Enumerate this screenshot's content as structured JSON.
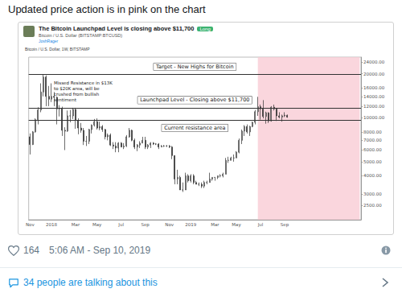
{
  "tweet": {
    "text": "Updated price action is in pink on the chart",
    "likes": 164,
    "timestamp": "5:06 AM - Sep 10, 2019",
    "conversation": "34 people are talking about this"
  },
  "idea": {
    "title": "The Bitcoin Launchpad Level is closing above $11,700",
    "badge": "Long",
    "symbol": "Bitcoin / U.S. Dollar (BITSTAMP:BTCUSD)",
    "author": "JoshRager"
  },
  "chart_data": {
    "type": "candlestick",
    "title": "Bitcoin / U.S. Dollar, 1W, BITSTAMP",
    "categories": [
      "Nov",
      null,
      null,
      null,
      null,
      null,
      null,
      null,
      "2018",
      null,
      null,
      null,
      null,
      null,
      null,
      null,
      null,
      "Mar",
      null,
      null,
      null,
      null,
      null,
      null,
      null,
      "May",
      null,
      null,
      null,
      null,
      null,
      null,
      null,
      null,
      "Jul",
      null,
      null,
      null,
      null,
      null,
      null,
      null,
      null,
      "Sep",
      null,
      null,
      null,
      null,
      null,
      null,
      null,
      null,
      "Nov",
      null,
      null,
      null,
      null,
      null,
      null,
      null,
      "2019",
      null,
      null,
      null,
      null,
      null,
      null,
      null,
      null,
      "Mar",
      null,
      null,
      null,
      null,
      null,
      null,
      null,
      "May",
      null,
      null,
      null,
      null,
      null,
      null,
      null,
      null,
      "Jul",
      null,
      null,
      null,
      null,
      null,
      null,
      null,
      null,
      "Sep",
      null,
      null,
      null,
      null,
      null,
      null,
      null,
      null,
      null,
      null,
      null,
      null,
      null,
      null,
      null,
      null,
      null,
      null,
      null,
      null,
      null,
      null,
      null,
      null,
      null,
      null,
      null,
      null
    ],
    "open_close_low_high": [
      [
        7400,
        6550,
        5600,
        7800
      ],
      [
        6550,
        8000,
        6500,
        8100
      ],
      [
        8000,
        9700,
        7900,
        9900
      ],
      [
        9700,
        11300,
        9000,
        11800
      ],
      [
        11300,
        15000,
        10900,
        17200
      ],
      [
        15000,
        19000,
        14000,
        19700
      ],
      [
        19000,
        14000,
        12000,
        19500
      ],
      [
        14000,
        13400,
        12000,
        16500
      ],
      [
        13400,
        14000,
        12800,
        17200
      ],
      [
        14000,
        13800,
        12000,
        15000
      ],
      [
        13800,
        11500,
        9000,
        14000
      ],
      [
        11500,
        11600,
        10200,
        12200
      ],
      [
        11600,
        8200,
        7500,
        11900
      ],
      [
        8200,
        8100,
        6000,
        8600
      ],
      [
        8100,
        10300,
        8000,
        11200
      ],
      [
        10300,
        10300,
        9300,
        11300
      ],
      [
        10300,
        11400,
        9800,
        11700
      ],
      [
        11400,
        9600,
        8400,
        11700
      ],
      [
        9600,
        8500,
        7700,
        9900
      ],
      [
        8500,
        8200,
        7900,
        9200
      ],
      [
        8200,
        6900,
        6500,
        8500
      ],
      [
        6900,
        6900,
        6400,
        7500
      ],
      [
        6900,
        8300,
        6600,
        8400
      ],
      [
        8300,
        8900,
        7800,
        9000
      ],
      [
        8900,
        9400,
        8700,
        9800
      ],
      [
        9400,
        8500,
        8300,
        9900
      ],
      [
        8500,
        8700,
        8200,
        9400
      ],
      [
        8700,
        8300,
        8000,
        8900
      ],
      [
        8300,
        7400,
        7100,
        8400
      ],
      [
        7400,
        7600,
        7000,
        7800
      ],
      [
        7600,
        6500,
        6400,
        7800
      ],
      [
        6500,
        6400,
        6100,
        6800
      ],
      [
        6400,
        6200,
        5800,
        6800
      ],
      [
        6200,
        6700,
        5800,
        6800
      ],
      [
        6700,
        6300,
        6300,
        6800
      ],
      [
        6300,
        6400,
        6100,
        6700
      ],
      [
        6400,
        7400,
        6300,
        7600
      ],
      [
        7400,
        8200,
        7300,
        8500
      ],
      [
        8200,
        7000,
        6900,
        8300
      ],
      [
        7000,
        6300,
        6100,
        7200
      ],
      [
        6300,
        6500,
        5900,
        6600
      ],
      [
        6500,
        6700,
        6200,
        6900
      ],
      [
        6700,
        7000,
        6700,
        7400
      ],
      [
        7000,
        6300,
        6100,
        7400
      ],
      [
        6300,
        6500,
        6100,
        6600
      ],
      [
        6500,
        6700,
        6200,
        6800
      ],
      [
        6700,
        6600,
        6500,
        6800
      ],
      [
        6600,
        6600,
        6500,
        6700
      ],
      [
        6600,
        6300,
        6100,
        6700
      ],
      [
        6300,
        6400,
        6300,
        6500
      ],
      [
        6400,
        6400,
        6300,
        6500
      ],
      [
        6400,
        6400,
        6300,
        6500
      ],
      [
        6400,
        6300,
        6200,
        6500
      ],
      [
        6300,
        5500,
        5200,
        6400
      ],
      [
        5500,
        3800,
        3500,
        5500
      ],
      [
        3800,
        3900,
        3500,
        4400
      ],
      [
        3900,
        3200,
        3200,
        4000
      ],
      [
        3200,
        3200,
        3100,
        3600
      ],
      [
        3200,
        4000,
        3200,
        4200
      ],
      [
        4000,
        3700,
        3600,
        4100
      ],
      [
        3700,
        4000,
        3600,
        4100
      ],
      [
        4000,
        3600,
        3500,
        4100
      ],
      [
        3600,
        3500,
        3500,
        3700
      ],
      [
        3500,
        3500,
        3400,
        3600
      ],
      [
        3500,
        3400,
        3300,
        3600
      ],
      [
        3400,
        3600,
        3300,
        3700
      ],
      [
        3600,
        3600,
        3500,
        3700
      ],
      [
        3600,
        3800,
        3600,
        4200
      ],
      [
        3800,
        3900,
        3700,
        3900
      ],
      [
        3900,
        3900,
        3700,
        3900
      ],
      [
        3900,
        4000,
        3800,
        4000
      ],
      [
        4000,
        4000,
        3900,
        4100
      ],
      [
        4000,
        4100,
        3900,
        4200
      ],
      [
        4100,
        5100,
        4100,
        5300
      ],
      [
        5100,
        5100,
        4900,
        5400
      ],
      [
        5100,
        5300,
        5100,
        5400
      ],
      [
        5300,
        5300,
        5000,
        5600
      ],
      [
        5300,
        5800,
        5300,
        5900
      ],
      [
        5800,
        7000,
        5700,
        7200
      ],
      [
        7000,
        8100,
        6600,
        8300
      ],
      [
        8100,
        8700,
        7500,
        8900
      ],
      [
        8700,
        8000,
        7800,
        9000
      ],
      [
        8000,
        8700,
        7500,
        8800
      ],
      [
        8700,
        9300,
        8600,
        9400
      ],
      [
        9300,
        11000,
        9000,
        11300
      ],
      [
        11000,
        11900,
        10300,
        13900
      ],
      [
        11900,
        11500,
        9700,
        12300
      ],
      [
        11500,
        10200,
        9900,
        13200
      ],
      [
        10200,
        10800,
        9100,
        11000
      ],
      [
        10800,
        9500,
        9200,
        10900
      ],
      [
        9500,
        11800,
        9400,
        12000
      ],
      [
        11800,
        11500,
        11200,
        12300
      ],
      [
        11500,
        10300,
        9500,
        11500
      ],
      [
        10300,
        10100,
        9900,
        10900
      ],
      [
        10100,
        10300,
        9400,
        10500
      ],
      [
        10300,
        10400,
        10100,
        10900
      ],
      [
        10400,
        10100,
        10000,
        10500
      ],
      null,
      null,
      null,
      null,
      null,
      null,
      null,
      null,
      null,
      null,
      null,
      null,
      null,
      null,
      null,
      null,
      null,
      null,
      null,
      null,
      null,
      null,
      null,
      null,
      null,
      null,
      null
    ],
    "color": "#2e2e2e",
    "log": "y",
    "ylim": [
      2000,
      26000
    ],
    "yticks": [
      {
        "value": 2500,
        "label": "2500.00"
      },
      {
        "value": 3000,
        "label": "3000.00"
      },
      {
        "value": 4000,
        "label": "4000.00"
      },
      {
        "value": 5000,
        "label": "5000.00"
      },
      {
        "value": 6000,
        "label": "6000.00"
      },
      {
        "value": 7000,
        "label": "7000.00"
      },
      {
        "value": 8000,
        "label": "8000.00"
      },
      {
        "value": 10000,
        "label": "10000.00"
      },
      {
        "value": 12000,
        "label": "12000.00"
      },
      {
        "value": 14000,
        "label": "14000.00"
      },
      {
        "value": 16000,
        "label": "16000.00"
      },
      {
        "value": 20000,
        "label": "20000.00"
      },
      {
        "value": 24000,
        "label": "24000.00"
      }
    ],
    "grid": false,
    "levels": [
      {
        "text": "Target - New Highs for Bitcoin",
        "value": 19800
      },
      {
        "text": "Launchpad Level - Closing above $11,700",
        "value": 11700
      },
      {
        "text": "Current resistance area",
        "value": 9600
      }
    ],
    "callout": "Missed Resistance in $13K to $20K area, will be crushed from bullish sentiment",
    "highlight": {
      "from": 85,
      "color": "#f9ccd5"
    }
  }
}
